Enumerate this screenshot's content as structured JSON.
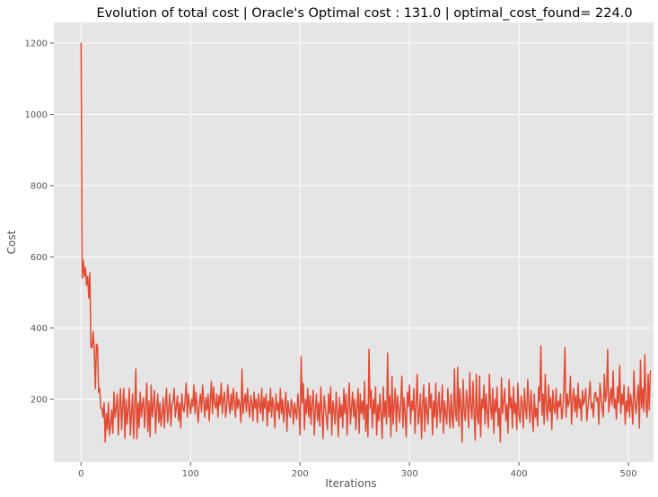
{
  "chart_data": {
    "type": "line",
    "title": "Evolution of total cost | Oracle's Optimal cost : 131.0 | optimal_cost_found= 224.0",
    "xlabel": "Iterations",
    "ylabel": "Cost",
    "xlim": [
      -24.9,
      522.9
    ],
    "ylim": [
      24,
      1258
    ],
    "xticks": [
      0,
      100,
      200,
      300,
      400,
      500
    ],
    "yticks": [
      200,
      400,
      600,
      800,
      1000,
      1200
    ],
    "grid": true,
    "style": "ggplot",
    "colors": {
      "line": "#E24A33",
      "background": "#E5E5E5",
      "grid": "#FFFFFF"
    },
    "series": [
      {
        "name": "",
        "x_start": 0,
        "x_step": 1,
        "values": [
          1200,
          540,
          590,
          545,
          570,
          520,
          545,
          485,
          555,
          345,
          345,
          390,
          340,
          230,
          355,
          350,
          220,
          230,
          175,
          175,
          150,
          190,
          80,
          160,
          115,
          190,
          100,
          130,
          170,
          105,
          220,
          150,
          175,
          215,
          100,
          180,
          230,
          115,
          185,
          230,
          90,
          200,
          130,
          170,
          230,
          100,
          160,
          215,
          90,
          180,
          285,
          90,
          190,
          120,
          220,
          150,
          185,
          205,
          120,
          180,
          245,
          110,
          195,
          95,
          240,
          150,
          185,
          225,
          105,
          175,
          215,
          135,
          190,
          125,
          160,
          205,
          120,
          185,
          230,
          135,
          170,
          215,
          125,
          185,
          195,
          230,
          150,
          180,
          210,
          140,
          190,
          120,
          215,
          175,
          165,
          200,
          245,
          150,
          215,
          185,
          160,
          200,
          180,
          240,
          160,
          220,
          175,
          135,
          190,
          215,
          165,
          240,
          195,
          150,
          205,
          170,
          215,
          140,
          195,
          250,
          160,
          235,
          190,
          175,
          215,
          150,
          210,
          185,
          245,
          160,
          200,
          220,
          150,
          180,
          240,
          190,
          160,
          215,
          170,
          230,
          195,
          150,
          220,
          175,
          200,
          185,
          135,
          285,
          160,
          195,
          215,
          165,
          230,
          180,
          150,
          210,
          190,
          140,
          220,
          175,
          200,
          135,
          215,
          185,
          160,
          230,
          140,
          205,
          175,
          215,
          125,
          195,
          165,
          230,
          150,
          205,
          180,
          120,
          215,
          170,
          190,
          145,
          230,
          160,
          200,
          135,
          185,
          220,
          110,
          195,
          165,
          150,
          200,
          180,
          130,
          190,
          165,
          145,
          215,
          175,
          100,
          320,
          190,
          245,
          115,
          200,
          160,
          230,
          150,
          210,
          130,
          190,
          225,
          100,
          175,
          215,
          140,
          190,
          125,
          235,
          165,
          90,
          210,
          180,
          150,
          115,
          215,
          160,
          235,
          100,
          195,
          170,
          130,
          220,
          165,
          95,
          205,
          150,
          185,
          120,
          230,
          160,
          215,
          100,
          185,
          245,
          130,
          175,
          220,
          150,
          200,
          115,
          180,
          230,
          105,
          215,
          160,
          195,
          145,
          250,
          110,
          185,
          95,
          340,
          175,
          225,
          120,
          200,
          160,
          235,
          100,
          185,
          140,
          215,
          165,
          90,
          235,
          150,
          195,
          130,
          330,
          150,
          210,
          95,
          265,
          130,
          185,
          230,
          110,
          210,
          175,
          135,
          190,
          265,
          120,
          205,
          160,
          95,
          220,
          180,
          240,
          130,
          195,
          170,
          230,
          105,
          185,
          270,
          130,
          160,
          215,
          90,
          185,
          240,
          110,
          205,
          165,
          130,
          245,
          175,
          215,
          100,
          195,
          150,
          245,
          120,
          180,
          220,
          135,
          175,
          240,
          105,
          195,
          160,
          130,
          230,
          175,
          120,
          215,
          150,
          120,
          285,
          160,
          140,
          290,
          125,
          230,
          180,
          80,
          255,
          165,
          140,
          225,
          190,
          120,
          275,
          180,
          145,
          250,
          165,
          85,
          270,
          155,
          130,
          265,
          95,
          200,
          175,
          240,
          130,
          215,
          165,
          120,
          270,
          180,
          145,
          230,
          105,
          200,
          165,
          235,
          125,
          175,
          80,
          260,
          160,
          195,
          230,
          140,
          185,
          105,
          255,
          175,
          205,
          120,
          235,
          160,
          190,
          115,
          245,
          160,
          135,
          210,
          185,
          120,
          230,
          175,
          145,
          255,
          185,
          135,
          225,
          165,
          110,
          215,
          150,
          175,
          125,
          235,
          195,
          350,
          155,
          215,
          130,
          270,
          180,
          140,
          240,
          165,
          205,
          115,
          225,
          175,
          160,
          230,
          145,
          195,
          180,
          215,
          145,
          165,
          230,
          345,
          150,
          215,
          180,
          195,
          265,
          130,
          200,
          230,
          165,
          210,
          150,
          245,
          175,
          200,
          140,
          225,
          185,
          200,
          230,
          140,
          180,
          210,
          250,
          175,
          190,
          150,
          215,
          220,
          195,
          205,
          130,
          245,
          210,
          175,
          150,
          270,
          195,
          215,
          340,
          165,
          195,
          230,
          185,
          280,
          175,
          200,
          145,
          235,
          190,
          295,
          160,
          215,
          185,
          240,
          130,
          195,
          165,
          235,
          150,
          215,
          185,
          130,
          280,
          195,
          160,
          205,
          240,
          120,
          310,
          175,
          230,
          165,
          325,
          185,
          150,
          270,
          170,
          280
        ]
      }
    ]
  }
}
